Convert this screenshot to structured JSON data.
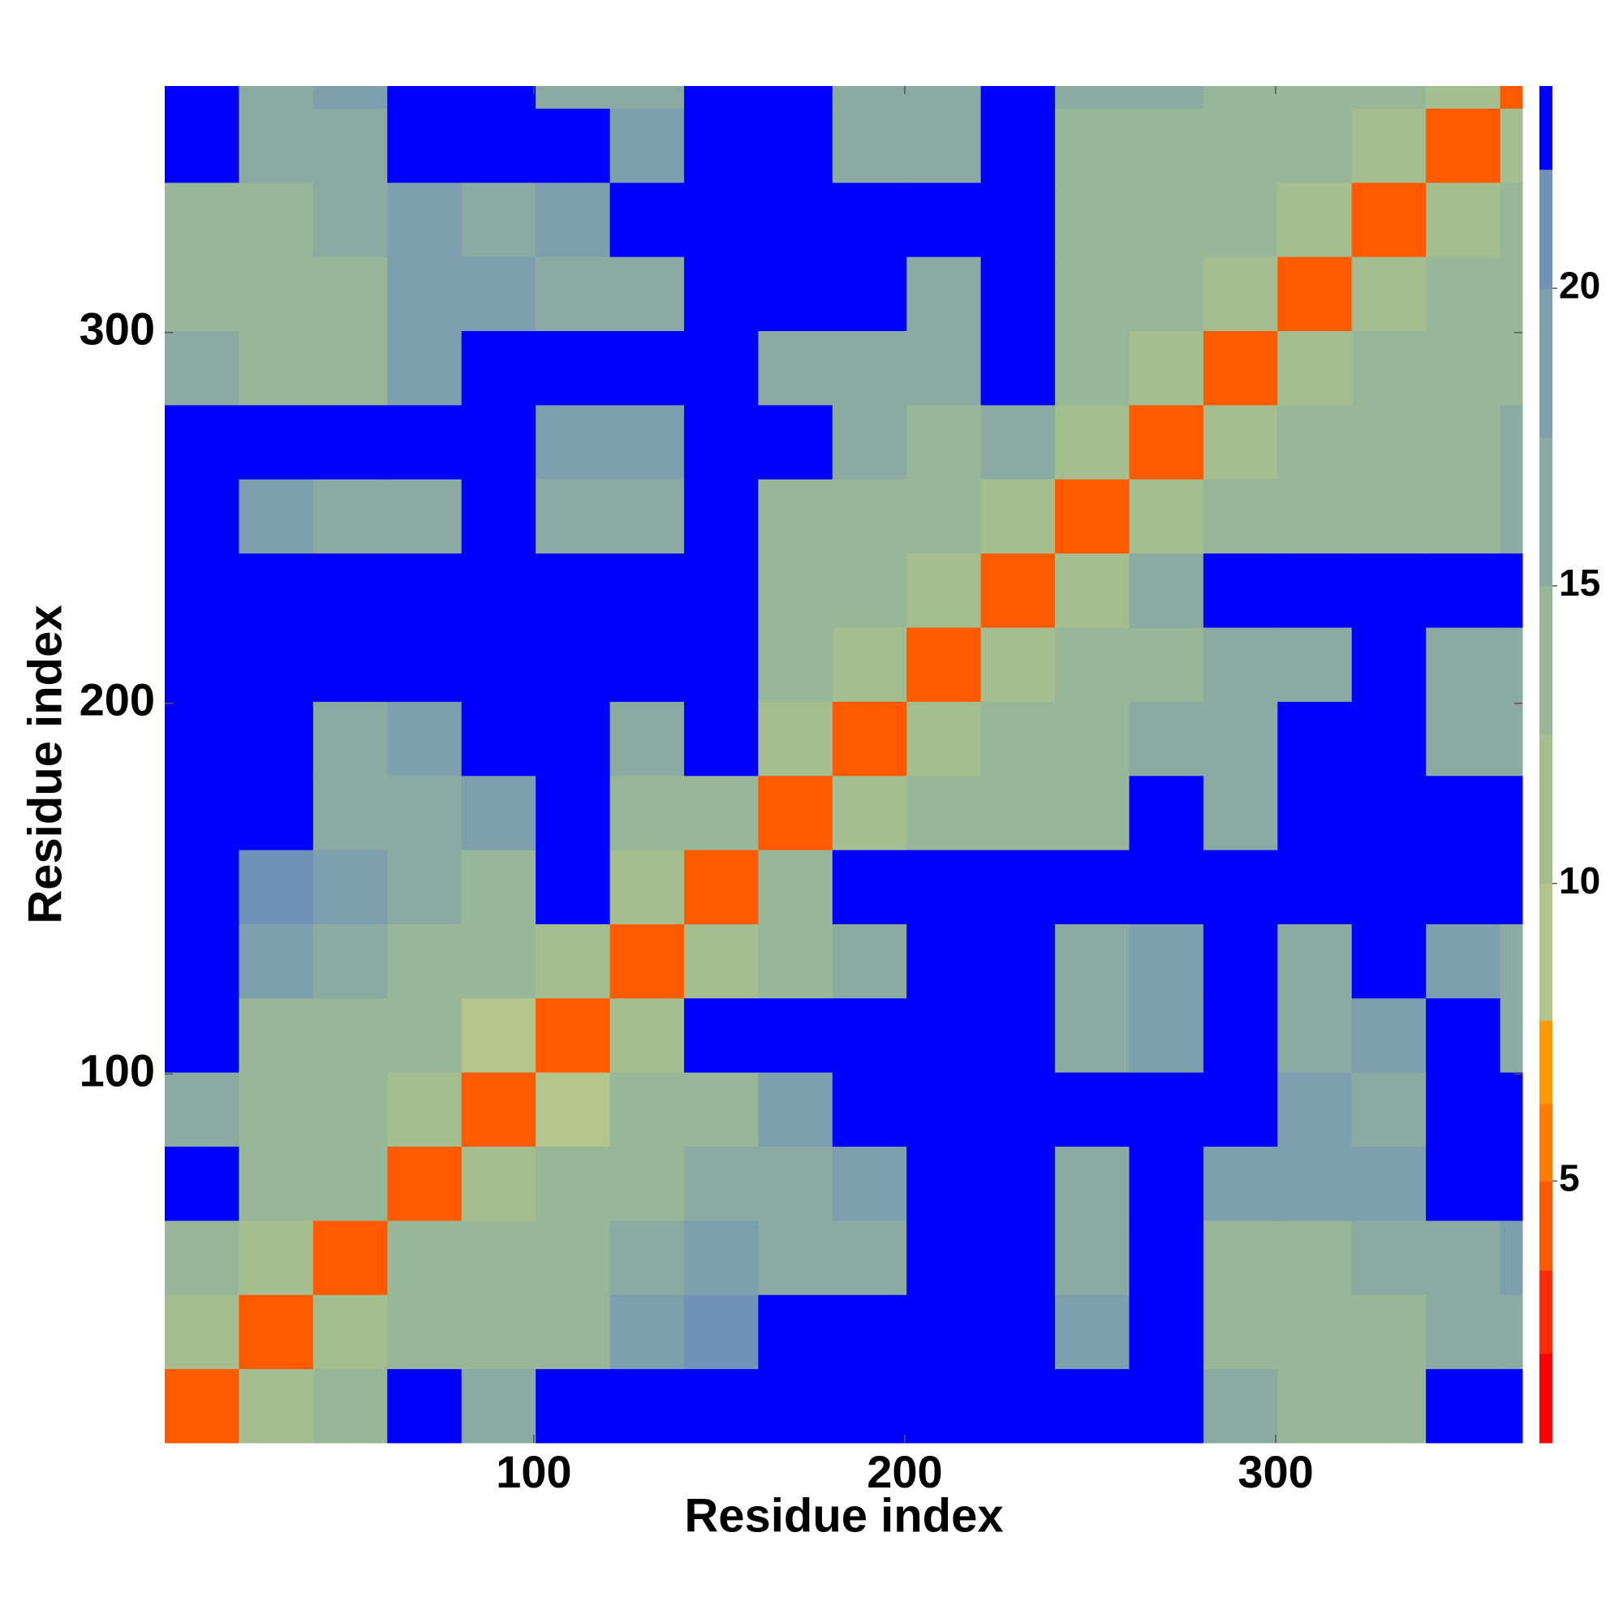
{
  "chart_data": {
    "type": "heatmap",
    "xlabel": "Residue index",
    "ylabel": "Residue index",
    "x_edges": [
      0.5,
      20.5,
      40.5,
      60.5,
      80.5,
      100.5,
      120.5,
      140.5,
      160.5,
      180.5,
      200.5,
      220.5,
      240.5,
      260.5,
      280.5,
      300.5,
      320.5,
      340.5,
      360.5,
      366.5
    ],
    "y_edges": [
      0.5,
      20.5,
      40.5,
      60.5,
      80.5,
      100.5,
      120.5,
      140.5,
      160.5,
      180.5,
      200.5,
      220.5,
      240.5,
      260.5,
      280.5,
      300.5,
      320.5,
      340.5,
      360.5,
      366.5
    ],
    "z": [
      [
        5,
        12,
        15,
        24,
        17,
        24,
        24,
        24,
        24,
        24,
        24,
        24,
        24,
        24,
        16,
        15,
        15,
        24,
        24
      ],
      [
        12,
        5,
        12,
        14,
        14,
        15,
        18,
        22,
        24,
        24,
        24,
        24,
        20,
        24,
        14,
        14,
        14,
        16,
        17
      ],
      [
        15,
        12,
        5,
        13,
        14,
        13,
        16,
        20,
        16,
        17,
        24,
        24,
        17,
        24,
        15,
        15,
        16,
        17,
        18
      ],
      [
        24,
        14,
        13,
        5,
        12,
        13,
        15,
        17,
        17,
        18,
        24,
        24,
        17,
        24,
        18,
        18,
        19,
        24,
        24
      ],
      [
        17,
        14,
        14,
        12,
        5,
        10,
        13,
        15,
        19,
        24,
        24,
        24,
        24,
        24,
        24,
        19,
        17,
        24,
        24
      ],
      [
        24,
        15,
        13,
        13,
        10,
        5,
        12,
        24,
        24,
        24,
        24,
        24,
        17,
        20,
        24,
        16,
        19,
        24,
        17
      ],
      [
        24,
        18,
        16,
        15,
        13,
        12,
        5,
        12,
        15,
        17,
        24,
        24,
        16,
        18,
        24,
        16,
        24,
        18,
        17
      ],
      [
        24,
        22,
        20,
        17,
        15,
        24,
        12,
        5,
        14,
        24,
        24,
        24,
        24,
        24,
        24,
        24,
        24,
        24,
        24
      ],
      [
        24,
        24,
        16,
        17,
        19,
        24,
        15,
        14,
        5,
        11,
        13,
        15,
        14,
        24,
        17,
        24,
        24,
        24,
        24
      ],
      [
        24,
        24,
        17,
        18,
        24,
        24,
        17,
        24,
        11,
        5,
        12,
        13,
        15,
        16,
        17,
        24,
        24,
        16,
        16
      ],
      [
        24,
        24,
        24,
        24,
        24,
        24,
        24,
        24,
        13,
        12,
        5,
        11,
        14,
        15,
        16,
        17,
        24,
        17,
        17
      ],
      [
        24,
        24,
        24,
        24,
        24,
        24,
        24,
        24,
        15,
        13,
        11,
        5,
        12,
        17,
        24,
        24,
        24,
        24,
        24
      ],
      [
        24,
        20,
        17,
        17,
        24,
        17,
        16,
        24,
        14,
        15,
        14,
        12,
        5,
        12,
        13,
        14,
        15,
        15,
        16
      ],
      [
        24,
        24,
        24,
        24,
        24,
        20,
        18,
        24,
        24,
        16,
        15,
        17,
        12,
        5,
        11,
        13,
        14,
        15,
        16
      ],
      [
        16,
        14,
        15,
        18,
        24,
        24,
        24,
        24,
        17,
        17,
        16,
        24,
        13,
        11,
        5,
        11,
        13,
        13,
        15
      ],
      [
        15,
        14,
        15,
        18,
        19,
        16,
        16,
        24,
        24,
        24,
        17,
        24,
        14,
        13,
        11,
        5,
        11,
        13,
        14
      ],
      [
        15,
        14,
        16,
        19,
        17,
        19,
        24,
        24,
        24,
        24,
        24,
        24,
        15,
        14,
        13,
        11,
        5,
        12,
        13
      ],
      [
        24,
        16,
        17,
        24,
        24,
        24,
        18,
        24,
        24,
        16,
        17,
        24,
        15,
        15,
        13,
        13,
        12,
        5,
        12
      ],
      [
        24,
        17,
        18,
        24,
        24,
        17,
        17,
        24,
        24,
        16,
        17,
        24,
        16,
        16,
        15,
        14,
        13,
        12,
        5
      ]
    ],
    "xlim": [
      0.5,
      366.5
    ],
    "ylim": [
      0.5,
      366.5
    ],
    "xticks": [
      100,
      200,
      300
    ],
    "yticks": [
      100,
      200,
      300
    ],
    "colorbar": {
      "lim": [
        0.6,
        23.4
      ],
      "ticks": [
        5,
        10,
        15,
        20
      ],
      "stops": [
        {
          "value": 2.1,
          "color": "#ff0000"
        },
        {
          "value": 3.5,
          "color": "#ff2a00"
        },
        {
          "value": 5.0,
          "color": "#ff5a00"
        },
        {
          "value": 6.3,
          "color": "#ff7d00"
        },
        {
          "value": 7.7,
          "color": "#ff9a00"
        },
        {
          "value": 10,
          "color": "#b4c48a"
        },
        {
          "value": 12.5,
          "color": "#a5be90"
        },
        {
          "value": 15,
          "color": "#98b698"
        },
        {
          "value": 17.5,
          "color": "#8aaaa2"
        },
        {
          "value": 20,
          "color": "#7e9fae"
        },
        {
          "value": 22,
          "color": "#6f92b6"
        },
        {
          "value": 23.4,
          "color": "#0000ff"
        }
      ]
    }
  }
}
